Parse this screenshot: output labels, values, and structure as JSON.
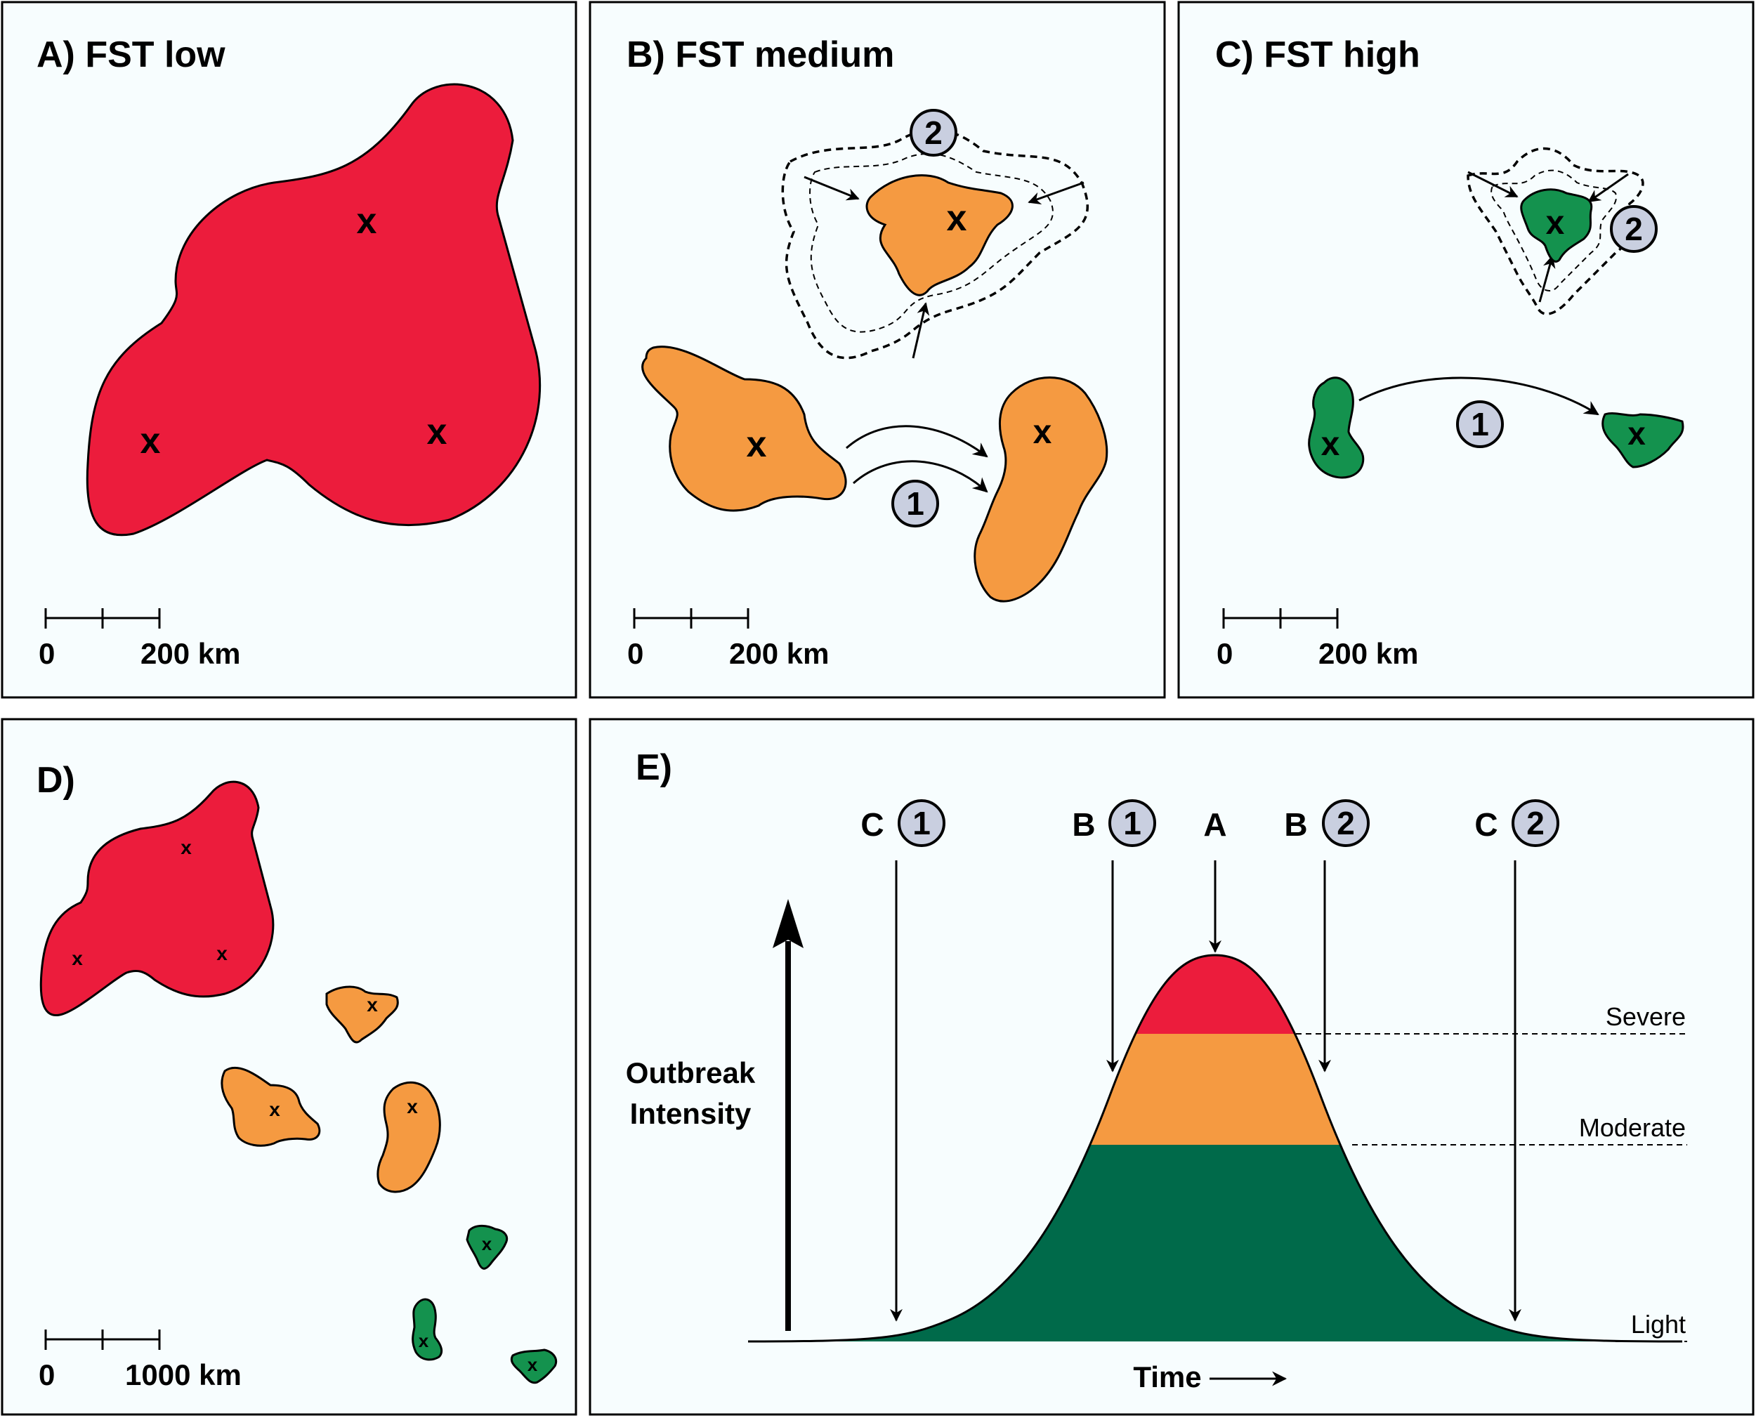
{
  "colors": {
    "severe": "#ec1c3c",
    "moderate": "#f59a41",
    "light": "#006a4a",
    "light_map": "#14924e",
    "circle": "#c9cfe0",
    "background": "#f7fdfe"
  },
  "panel_a": {
    "title": "A) FST low",
    "marker": "x",
    "scale_start": "0",
    "scale_end": "200 km"
  },
  "panel_b": {
    "title": "B) FST medium",
    "marker": "x",
    "scale_start": "0",
    "scale_end": "200 km",
    "callout_1": "1",
    "callout_2": "2"
  },
  "panel_c": {
    "title": "C) FST high",
    "marker": "x",
    "scale_start": "0",
    "scale_end": "200 km",
    "callout_1": "1",
    "callout_2": "2"
  },
  "panel_d": {
    "title": "D)",
    "marker": "x",
    "scale_start": "0",
    "scale_end": "1000 km"
  },
  "panel_e": {
    "title": "E)",
    "y_axis_label_line1": "Outbreak",
    "y_axis_label_line2": "Intensity",
    "x_axis_label": "Time",
    "levels": {
      "severe": "Severe",
      "moderate": "Moderate",
      "light": "Light"
    },
    "markers": [
      {
        "letter": "C",
        "num": "1"
      },
      {
        "letter": "B",
        "num": "1"
      },
      {
        "letter": "A",
        "num": ""
      },
      {
        "letter": "B",
        "num": "2"
      },
      {
        "letter": "C",
        "num": "2"
      }
    ]
  }
}
